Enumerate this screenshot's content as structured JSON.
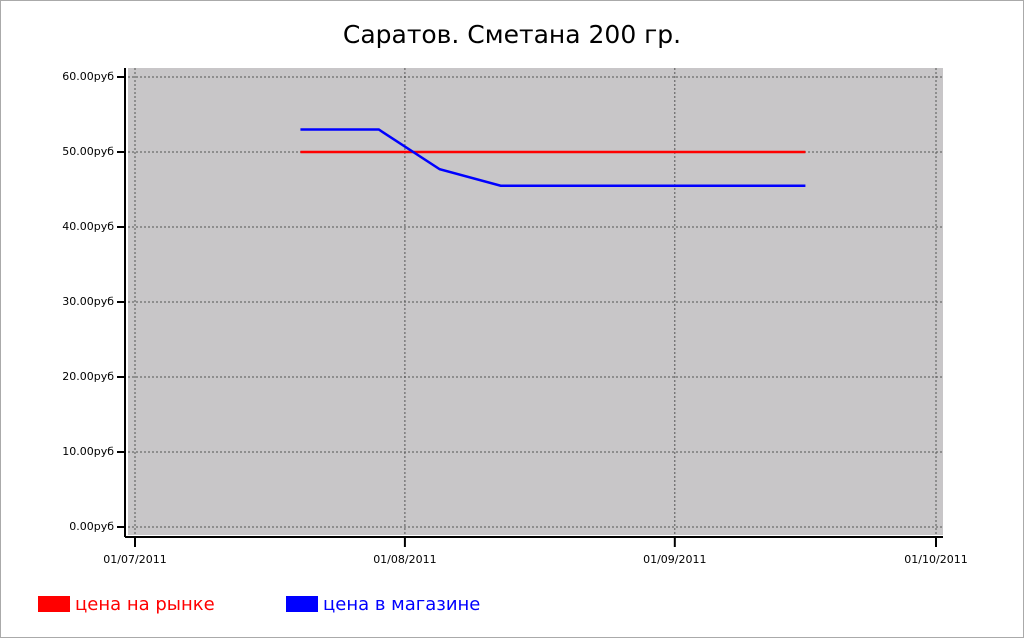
{
  "chart_data": {
    "type": "line",
    "title": "Саратов. Сметана 200 гр.",
    "x": [
      "2011-07-20",
      "2011-07-29",
      "2011-08-05",
      "2011-08-12",
      "2011-08-19",
      "2011-08-26",
      "2011-09-02",
      "2011-09-09",
      "2011-09-16"
    ],
    "series": [
      {
        "name": "цена на рынке",
        "color": "#ff0000",
        "values": [
          50,
          50,
          50,
          50,
          50,
          50,
          50,
          50,
          50
        ]
      },
      {
        "name": "цена в магазине",
        "color": "#0000ff",
        "values": [
          53,
          53,
          47.7,
          45.5,
          45.5,
          45.5,
          45.5,
          45.5,
          45.5
        ]
      }
    ],
    "xlim": [
      "2011-07-01",
      "2011-10-01"
    ],
    "xticks": [
      {
        "value": "2011-07-01",
        "label": "01/07/2011"
      },
      {
        "value": "2011-08-01",
        "label": "01/08/2011"
      },
      {
        "value": "2011-09-01",
        "label": "01/09/2011"
      },
      {
        "value": "2011-10-01",
        "label": "01/10/2011"
      }
    ],
    "ylim": [
      0,
      60
    ],
    "yticks": [
      {
        "value": 0,
        "label": "0.00руб"
      },
      {
        "value": 10,
        "label": "10.00руб"
      },
      {
        "value": 20,
        "label": "20.00руб"
      },
      {
        "value": 30,
        "label": "30.00руб"
      },
      {
        "value": 40,
        "label": "40.00руб"
      },
      {
        "value": 50,
        "label": "50.00руб"
      },
      {
        "value": 60,
        "label": "60.00руб"
      }
    ],
    "grid": true,
    "legend": "bottom"
  }
}
